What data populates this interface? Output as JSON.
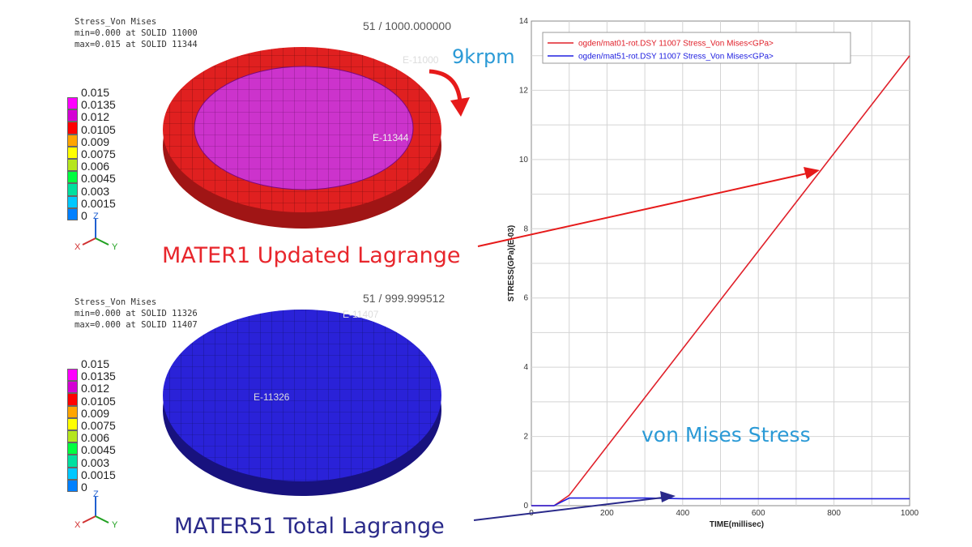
{
  "top_panel": {
    "field": "Stress_Von Mises",
    "min_line": "min=0.000 at SOLID 11000",
    "max_line": "max=0.015 at SOLID 11344",
    "frame": "51 / 1000.000000",
    "element_labels": [
      "E-11000",
      "E-11344"
    ],
    "rpm_label": "9krpm",
    "caption": "MATER1 Updated Lagrange",
    "caption_color": "#e8262c",
    "disk_outer_color": "#e02020",
    "disk_inner_color": "#cc33cc"
  },
  "bottom_panel": {
    "field": "Stress_Von Mises",
    "min_line": "min=0.000 at SOLID 11326",
    "max_line": "max=0.000 at SOLID 11407",
    "frame": "51 / 999.999512",
    "element_labels": [
      "E-11407",
      "E-11326"
    ],
    "caption": "MATER51 Total Lagrange",
    "caption_color": "#2a2a8a",
    "disk_color": "#2a22d8"
  },
  "legend": {
    "labels": [
      "0.015",
      "0.0135",
      "0.012",
      "0.0105",
      "0.009",
      "0.0075",
      "0.006",
      "0.0045",
      "0.003",
      "0.0015",
      "0"
    ],
    "colors": [
      "#ff00ff",
      "#d400d4",
      "#ff0000",
      "#ffa500",
      "#ffff00",
      "#b5e61d",
      "#00ff40",
      "#00e0a0",
      "#00c8ff",
      "#0080ff",
      "#0000ff"
    ]
  },
  "axes_triad": {
    "x": "X",
    "y": "Y",
    "z": "Z"
  },
  "annotation": "von Mises Stress",
  "chart_data": {
    "type": "line",
    "xlabel": "TIME(millisec)",
    "ylabel": "STRESS(GPa)(E-03)",
    "xlim": [
      0,
      1000
    ],
    "ylim": [
      0,
      14
    ],
    "xticks": [
      0,
      200,
      400,
      600,
      800,
      1000
    ],
    "yticks": [
      0,
      2,
      4,
      6,
      8,
      10,
      12,
      14
    ],
    "grid": true,
    "legend_position": "top",
    "series": [
      {
        "name": "ogden/mat01-rot.DSY 11007 Stress_Von Mises<GPa>",
        "color": "#e0202a",
        "x": [
          0,
          60,
          100,
          1000
        ],
        "y": [
          0,
          0,
          0.3,
          13.0
        ]
      },
      {
        "name": "ogden/mat51-rot.DSY 11007 Stress_Von Mises<GPa>",
        "color": "#2020e0",
        "x": [
          0,
          60,
          100,
          300,
          400,
          1000
        ],
        "y": [
          0,
          0,
          0.22,
          0.22,
          0.2,
          0.2
        ]
      }
    ]
  }
}
